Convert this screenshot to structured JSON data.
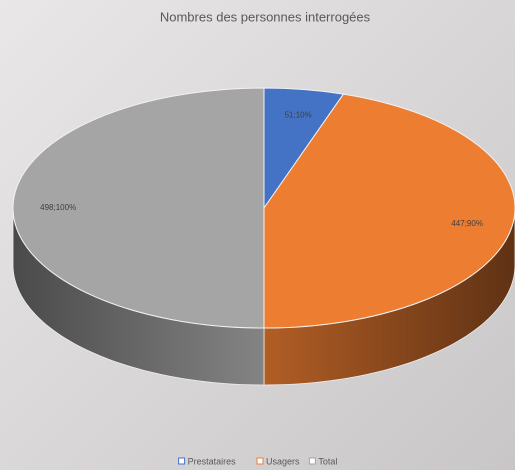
{
  "chart_data": {
    "type": "pie",
    "title": "Nombres des personnes interrogées",
    "categories": [
      "Prestataires",
      "Usagers",
      "Total"
    ],
    "values": [
      51,
      447,
      498
    ],
    "value_labels": [
      "51;10%",
      "447;90%",
      "498;100%"
    ],
    "colors": [
      "#4472c4",
      "#ed7d31",
      "#a5a5a5"
    ],
    "legend": "bottom"
  }
}
